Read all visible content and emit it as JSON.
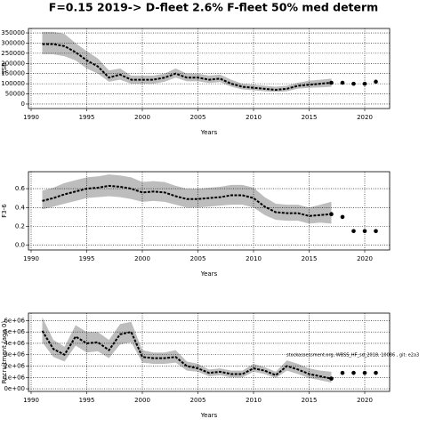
{
  "title": "F=0.15 2019-> D-fleet 2.6% F-fleet 50% med determ",
  "chart_data": [
    {
      "type": "line",
      "ylabel": "SSB",
      "xlabel": "Years",
      "color": "#000000",
      "band_color": "#bdbdbd",
      "grid": true,
      "x": [
        1991,
        1992,
        1993,
        1994,
        1995,
        1996,
        1997,
        1998,
        1999,
        2000,
        2001,
        2002,
        2003,
        2004,
        2005,
        2006,
        2007,
        2008,
        2009,
        2010,
        2011,
        2012,
        2013,
        2014,
        2015,
        2016,
        2017
      ],
      "values": [
        295000,
        295000,
        285000,
        255000,
        215000,
        185000,
        130000,
        145000,
        120000,
        120000,
        120000,
        130000,
        150000,
        130000,
        130000,
        120000,
        125000,
        100000,
        85000,
        80000,
        75000,
        70000,
        75000,
        90000,
        95000,
        100000,
        105000
      ],
      "upper": [
        355000,
        355000,
        345000,
        300000,
        260000,
        225000,
        165000,
        175000,
        140000,
        140000,
        140000,
        150000,
        175000,
        150000,
        150000,
        140000,
        145000,
        120000,
        100000,
        95000,
        90000,
        85000,
        90000,
        105000,
        115000,
        120000,
        125000
      ],
      "lower": [
        245000,
        245000,
        235000,
        215000,
        175000,
        150000,
        110000,
        120000,
        100000,
        100000,
        100000,
        110000,
        130000,
        112000,
        112000,
        104000,
        108000,
        85000,
        72000,
        68000,
        63000,
        60000,
        63000,
        76000,
        80000,
        82000,
        85000
      ],
      "projection_x": [
        2017,
        2018,
        2019,
        2020,
        2021
      ],
      "projection_values": [
        105000,
        105000,
        100000,
        100000,
        110000
      ],
      "xlim": [
        1989.76,
        2022.24
      ],
      "xticks": [
        1990,
        1995,
        2000,
        2005,
        2010,
        2015,
        2020
      ],
      "ylim": [
        -22000,
        372000
      ],
      "yticks": [
        0,
        50000,
        100000,
        150000,
        200000,
        250000,
        300000,
        350000
      ]
    },
    {
      "type": "line",
      "ylabel": "F3-6",
      "xlabel": "Years",
      "color": "#000000",
      "band_color": "#bdbdbd",
      "grid": true,
      "x": [
        1991,
        1992,
        1993,
        1994,
        1995,
        1996,
        1997,
        1998,
        1999,
        2000,
        2001,
        2002,
        2003,
        2004,
        2005,
        2006,
        2007,
        2008,
        2009,
        2010,
        2011,
        2012,
        2013,
        2014,
        2015,
        2016,
        2017
      ],
      "values": [
        0.47,
        0.5,
        0.54,
        0.57,
        0.6,
        0.61,
        0.63,
        0.62,
        0.6,
        0.56,
        0.57,
        0.56,
        0.52,
        0.49,
        0.49,
        0.5,
        0.51,
        0.53,
        0.53,
        0.5,
        0.41,
        0.35,
        0.34,
        0.34,
        0.31,
        0.32,
        0.33
      ],
      "upper": [
        0.58,
        0.61,
        0.66,
        0.69,
        0.72,
        0.73,
        0.75,
        0.74,
        0.72,
        0.67,
        0.68,
        0.67,
        0.63,
        0.6,
        0.6,
        0.61,
        0.62,
        0.64,
        0.64,
        0.61,
        0.51,
        0.44,
        0.43,
        0.43,
        0.4,
        0.43,
        0.46
      ],
      "lower": [
        0.38,
        0.41,
        0.44,
        0.47,
        0.5,
        0.51,
        0.52,
        0.51,
        0.49,
        0.46,
        0.47,
        0.46,
        0.43,
        0.4,
        0.4,
        0.41,
        0.42,
        0.43,
        0.43,
        0.4,
        0.32,
        0.27,
        0.26,
        0.26,
        0.23,
        0.24,
        0.23
      ],
      "projection_x": [
        2017,
        2018,
        2019,
        2020,
        2021
      ],
      "projection_values": [
        0.33,
        0.3,
        0.15,
        0.15,
        0.15
      ],
      "xlim": [
        1989.76,
        2022.24
      ],
      "xticks": [
        1990,
        1995,
        2000,
        2005,
        2010,
        2015,
        2020
      ],
      "ylim": [
        -0.05,
        0.78
      ],
      "yticks": [
        {
          "value": 0,
          "label": "0.0"
        },
        0.2,
        0.4,
        0.6
      ]
    },
    {
      "type": "line",
      "ylabel": "Recruitment (age 0)",
      "xlabel": "Years",
      "color": "#000000",
      "band_color": "#bdbdbd",
      "grid": true,
      "annotation": "stockassessment.org, WBSS_HF_sd_2018, 10086 , git: e2a3",
      "x": [
        1991,
        1992,
        1993,
        1994,
        1995,
        1996,
        1997,
        1998,
        1999,
        2000,
        2001,
        2002,
        2003,
        2004,
        2005,
        2006,
        2007,
        2008,
        2009,
        2010,
        2011,
        2012,
        2013,
        2014,
        2015,
        2016,
        2017
      ],
      "values": [
        5100000,
        3500000,
        3000000,
        4600000,
        4000000,
        4100000,
        3400000,
        4800000,
        5000000,
        2800000,
        2700000,
        2700000,
        2800000,
        2000000,
        1800000,
        1400000,
        1500000,
        1300000,
        1300000,
        1800000,
        1600000,
        1200000,
        2000000,
        1700000,
        1300000,
        1100000,
        900000
      ],
      "upper": [
        6300000,
        4300000,
        3700000,
        5600000,
        5000000,
        5000000,
        4300000,
        5700000,
        5900000,
        3400000,
        3200000,
        3200000,
        3400000,
        2400000,
        2200000,
        1700000,
        1800000,
        1600000,
        1600000,
        2200000,
        1900000,
        1500000,
        2500000,
        2200000,
        1800000,
        1600000,
        1500000
      ],
      "lower": [
        4100000,
        2800000,
        2400000,
        3800000,
        3200000,
        3300000,
        2700000,
        3900000,
        4100000,
        2300000,
        2200000,
        2200000,
        2300000,
        1600000,
        1500000,
        1100000,
        1200000,
        1000000,
        1000000,
        1500000,
        1300000,
        950000,
        1600000,
        1300000,
        950000,
        750000,
        550000
      ],
      "projection_x": [
        2017,
        2018,
        2019,
        2020,
        2021
      ],
      "projection_values": [
        900000,
        1400000,
        1400000,
        1400000,
        1400000
      ],
      "xlim": [
        1989.76,
        2022.24
      ],
      "xticks": [
        1990,
        1995,
        2000,
        2005,
        2010,
        2015,
        2020
      ],
      "ylim": [
        -230000,
        6660000
      ],
      "yticks": [
        {
          "value": 0,
          "label": "0e+00"
        },
        {
          "value": 1000000,
          "label": "1e+06"
        },
        {
          "value": 2000000,
          "label": "2e+06"
        },
        {
          "value": 3000000,
          "label": "3e+06"
        },
        {
          "value": 4000000,
          "label": "4e+06"
        },
        {
          "value": 5000000,
          "label": "5e+06"
        },
        {
          "value": 6000000,
          "label": "6e+06"
        }
      ]
    }
  ]
}
